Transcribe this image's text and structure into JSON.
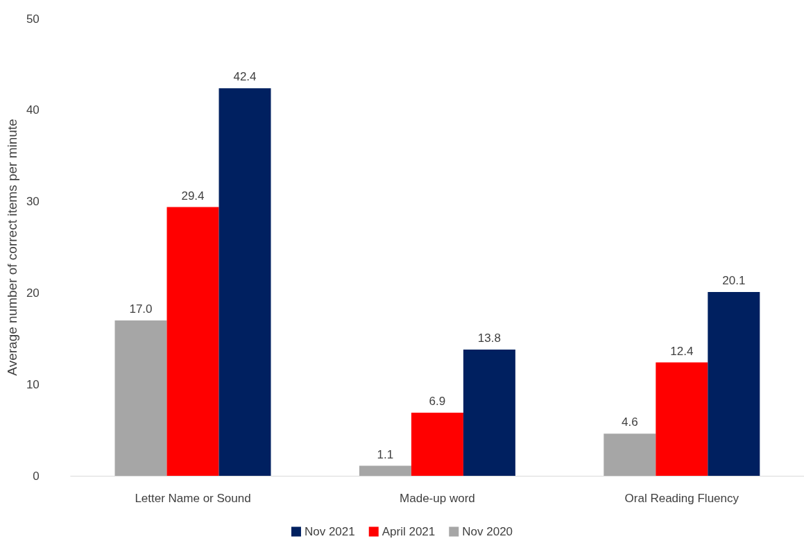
{
  "chart_data": {
    "type": "bar",
    "ylabel": "Average number of correct items per minute",
    "categories": [
      "Letter Name or Sound",
      "Made-up word",
      "Oral Reading Fluency"
    ],
    "series": [
      {
        "name": "Nov 2020",
        "color": "#a6a6a6",
        "values": [
          17.0,
          1.1,
          4.6
        ],
        "value_labels": [
          "17.0",
          "1.1",
          "4.6"
        ]
      },
      {
        "name": "April 2021",
        "color": "#ff0000",
        "values": [
          29.4,
          6.9,
          12.4
        ],
        "value_labels": [
          "29.4",
          "6.9",
          "12.4"
        ]
      },
      {
        "name": "Nov 2021",
        "color": "#002060",
        "values": [
          42.4,
          13.8,
          20.1
        ],
        "value_labels": [
          "42.4",
          "13.8",
          "20.1"
        ]
      }
    ],
    "ylim": [
      0,
      50
    ],
    "yticks": [
      0,
      10,
      20,
      30,
      40,
      50
    ],
    "grid": false,
    "legend": "bottom"
  }
}
